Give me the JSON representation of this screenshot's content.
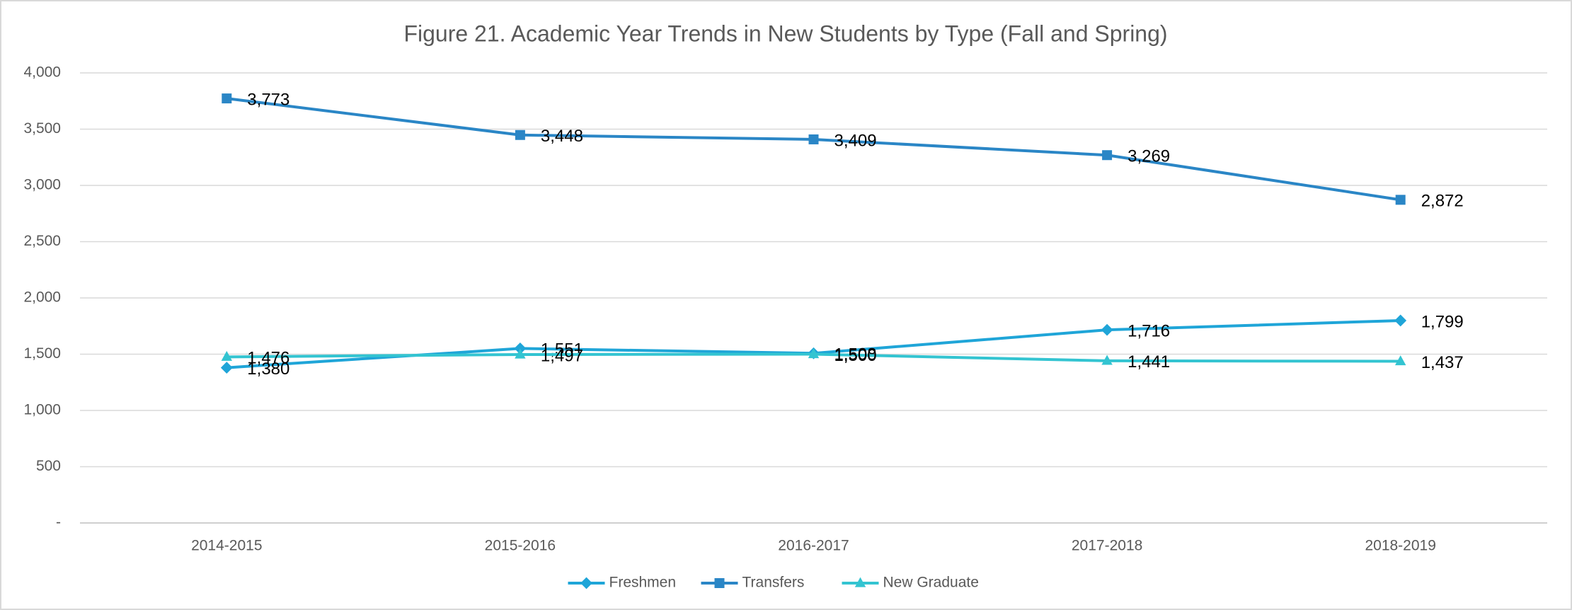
{
  "chart_data": {
    "type": "line",
    "title": "Figure 21.  Academic Year Trends in New Students by Type (Fall and Spring)",
    "categories": [
      "2014-2015",
      "2015-2016",
      "2016-2017",
      "2017-2018",
      "2018-2019"
    ],
    "series": [
      {
        "name": "Freshmen",
        "color": "#1fa5d8",
        "marker": "diamond",
        "values": [
          1380,
          1551,
          1508,
          1716,
          1799
        ],
        "value_labels": [
          "1,380",
          "1,551",
          "1,508",
          "1,716",
          "1,799"
        ]
      },
      {
        "name": "Transfers",
        "color": "#2a86c6",
        "marker": "square",
        "values": [
          3773,
          3448,
          3409,
          3269,
          2872
        ],
        "value_labels": [
          "3,773",
          "3,448",
          "3,409",
          "3,269",
          "2,872"
        ]
      },
      {
        "name": "New Graduate",
        "color": "#33c4d1",
        "marker": "triangle",
        "values": [
          1476,
          1497,
          1500,
          1441,
          1437
        ],
        "value_labels": [
          "1,476",
          "1,497",
          "1,500",
          "1,441",
          "1,437"
        ]
      }
    ],
    "ylim": [
      0,
      4000
    ],
    "yticks": [
      {
        "value": 0,
        "label": "-"
      },
      500,
      {
        "value": 1000,
        "label": "1,000"
      },
      {
        "value": 1500,
        "label": "1,500"
      },
      {
        "value": 2000,
        "label": "2,000"
      },
      {
        "value": 2500,
        "label": "2,500"
      },
      {
        "value": 3000,
        "label": "3,000"
      },
      {
        "value": 3500,
        "label": "3,500"
      },
      {
        "value": 4000,
        "label": "4,000"
      }
    ],
    "grid": true,
    "legend": "bottom"
  }
}
